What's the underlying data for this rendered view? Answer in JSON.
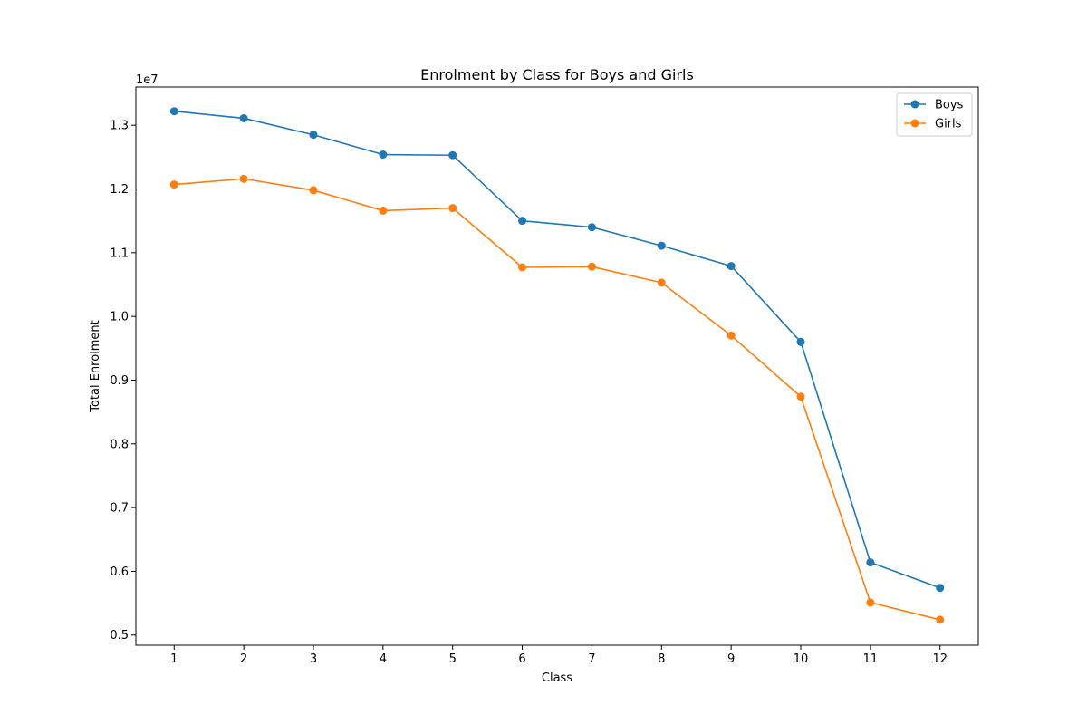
{
  "chart_data": {
    "type": "line",
    "title": "Enrolment by Class for Boys and Girls",
    "xlabel": "Class",
    "ylabel": "Total Enrolment",
    "y_offset_label": "1e7",
    "y_scale": 10000000,
    "x": [
      1,
      2,
      3,
      4,
      5,
      6,
      7,
      8,
      9,
      10,
      11,
      12
    ],
    "xticks": [
      "1",
      "2",
      "3",
      "4",
      "5",
      "6",
      "7",
      "8",
      "9",
      "10",
      "11",
      "12"
    ],
    "xlim": [
      0.45,
      12.55
    ],
    "yticks": [
      "0.5",
      "0.6",
      "0.7",
      "0.8",
      "0.9",
      "1.0",
      "1.1",
      "1.2",
      "1.3"
    ],
    "ylim": [
      4840000,
      13600000
    ],
    "grid": false,
    "legend_position": "top-right",
    "series": [
      {
        "name": "Boys",
        "color": "#1f77b4",
        "marker": "circle",
        "values": [
          13220000,
          13110000,
          12850000,
          12540000,
          12530000,
          11500000,
          11400000,
          11110000,
          10790000,
          9600000,
          6140000,
          5740000
        ]
      },
      {
        "name": "Girls",
        "color": "#ff7f0e",
        "marker": "circle",
        "values": [
          12070000,
          12160000,
          11980000,
          11660000,
          11700000,
          10770000,
          10780000,
          10530000,
          9700000,
          8740000,
          5510000,
          5240000
        ]
      }
    ]
  }
}
